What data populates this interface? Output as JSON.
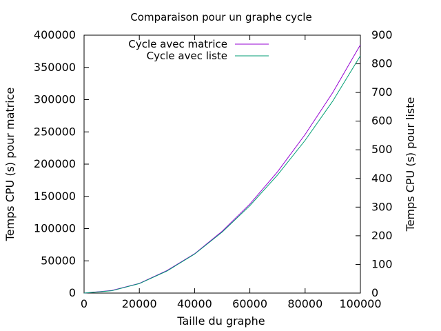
{
  "chart_data": {
    "type": "line",
    "title": "Comparaison pour un graphe cycle",
    "xlabel": "Taille du graphe",
    "ylabel": "Temps CPU (s) pour matrice",
    "y2label": "Temps CPU (s) pour liste",
    "xlim": [
      0,
      100000
    ],
    "ylim": [
      0,
      400000
    ],
    "y2lim": [
      0,
      900
    ],
    "xticks": [
      "0",
      "20000",
      "40000",
      "60000",
      "80000",
      "100000"
    ],
    "yticks": [
      "0",
      "50000",
      "100000",
      "150000",
      "200000",
      "250000",
      "300000",
      "350000",
      "400000"
    ],
    "y2ticks": [
      "0",
      "100",
      "200",
      "300",
      "400",
      "500",
      "600",
      "700",
      "800",
      "900"
    ],
    "grid": false,
    "legend_position": "top-left",
    "series": [
      {
        "name": "Cycle avec matrice",
        "axis": "y",
        "color": "#9400d3",
        "x": [
          0,
          10000,
          20000,
          30000,
          40000,
          50000,
          60000,
          70000,
          80000,
          90000,
          100000
        ],
        "values": [
          0,
          4000,
          15000,
          35000,
          61000,
          96000,
          138000,
          188000,
          246000,
          311000,
          385000
        ]
      },
      {
        "name": "Cycle avec liste",
        "axis": "y2",
        "color": "#009e73",
        "x": [
          0,
          10000,
          20000,
          30000,
          40000,
          50000,
          60000,
          70000,
          80000,
          90000,
          100000
        ],
        "values": [
          0,
          8,
          33,
          77,
          136,
          213,
          305,
          412,
          533,
          670,
          828
        ]
      }
    ]
  }
}
